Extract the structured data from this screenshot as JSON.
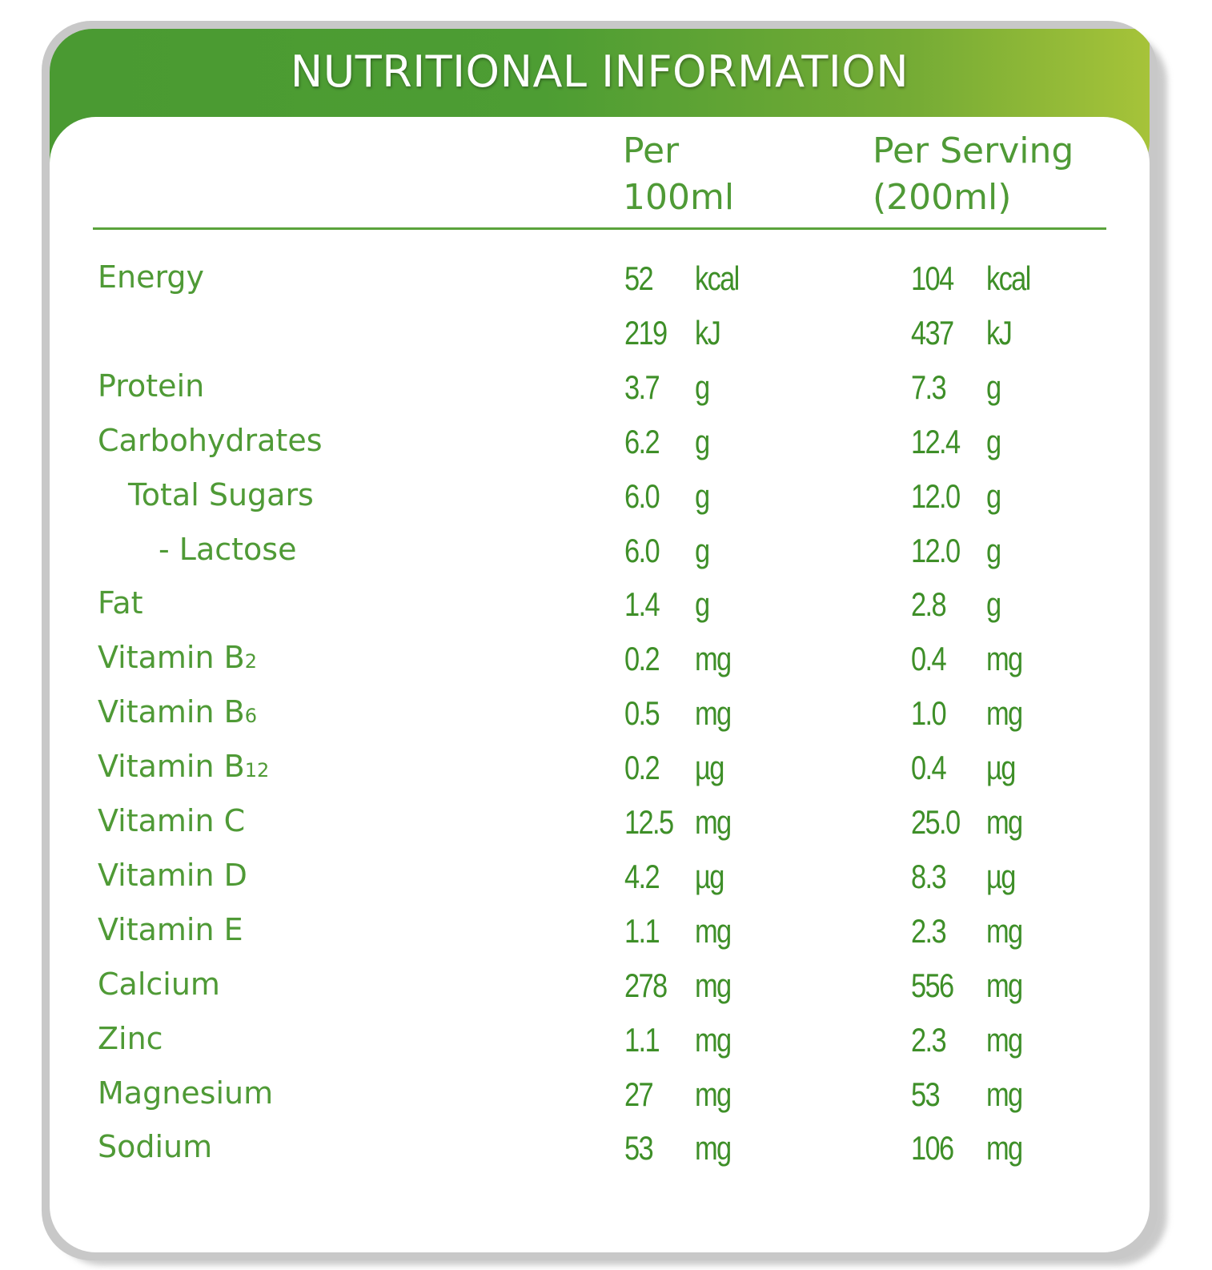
{
  "title": "NUTRITIONAL INFORMATION",
  "columns": {
    "per_100_line1": "Per",
    "per_100_line2": "100ml",
    "per_serving_line1": "Per Serving",
    "per_serving_line2": "(200ml)"
  },
  "rows": [
    {
      "label": "Energy",
      "sub": "",
      "indent": 0,
      "v1": "52",
      "u1": "kcal",
      "v2": "104",
      "u2": "kcal"
    },
    {
      "label": "",
      "sub": "",
      "indent": 0,
      "v1": "219",
      "u1": "kJ",
      "v2": "437",
      "u2": "kJ"
    },
    {
      "label": "Protein",
      "sub": "",
      "indent": 0,
      "v1": "3.7",
      "u1": "g",
      "v2": "7.3",
      "u2": "g"
    },
    {
      "label": "Carbohydrates",
      "sub": "",
      "indent": 0,
      "v1": "6.2",
      "u1": "g",
      "v2": "12.4",
      "u2": "g"
    },
    {
      "label": "Total Sugars",
      "sub": "",
      "indent": 1,
      "v1": "6.0",
      "u1": "g",
      "v2": "12.0",
      "u2": "g"
    },
    {
      "label": "- Lactose",
      "sub": "",
      "indent": 2,
      "v1": "6.0",
      "u1": "g",
      "v2": "12.0",
      "u2": "g"
    },
    {
      "label": "Fat",
      "sub": "",
      "indent": 0,
      "v1": "1.4",
      "u1": "g",
      "v2": "2.8",
      "u2": "g"
    },
    {
      "label": "Vitamin B",
      "sub": "2",
      "indent": 0,
      "v1": "0.2",
      "u1": "mg",
      "v2": "0.4",
      "u2": "mg"
    },
    {
      "label": "Vitamin B",
      "sub": "6",
      "indent": 0,
      "v1": "0.5",
      "u1": "mg",
      "v2": "1.0",
      "u2": "mg"
    },
    {
      "label": "Vitamin B",
      "sub": "12",
      "indent": 0,
      "v1": "0.2",
      "u1": "µg",
      "v2": "0.4",
      "u2": "µg"
    },
    {
      "label": "Vitamin C",
      "sub": "",
      "indent": 0,
      "v1": "12.5",
      "u1": "mg",
      "v2": "25.0",
      "u2": "mg"
    },
    {
      "label": "Vitamin D",
      "sub": "",
      "indent": 0,
      "v1": "4.2",
      "u1": "µg",
      "v2": "8.3",
      "u2": "µg"
    },
    {
      "label": "Vitamin E",
      "sub": "",
      "indent": 0,
      "v1": "1.1",
      "u1": "mg",
      "v2": "2.3",
      "u2": "mg"
    },
    {
      "label": "Calcium",
      "sub": "",
      "indent": 0,
      "v1": "278",
      "u1": "mg",
      "v2": "556",
      "u2": "mg"
    },
    {
      "label": "Zinc",
      "sub": "",
      "indent": 0,
      "v1": "1.1",
      "u1": "mg",
      "v2": "2.3",
      "u2": "mg"
    },
    {
      "label": "Magnesium",
      "sub": "",
      "indent": 0,
      "v1": "27",
      "u1": "mg",
      "v2": "53",
      "u2": "mg"
    },
    {
      "label": "Sodium",
      "sub": "",
      "indent": 0,
      "v1": "53",
      "u1": "mg",
      "v2": "106",
      "u2": "mg"
    }
  ]
}
